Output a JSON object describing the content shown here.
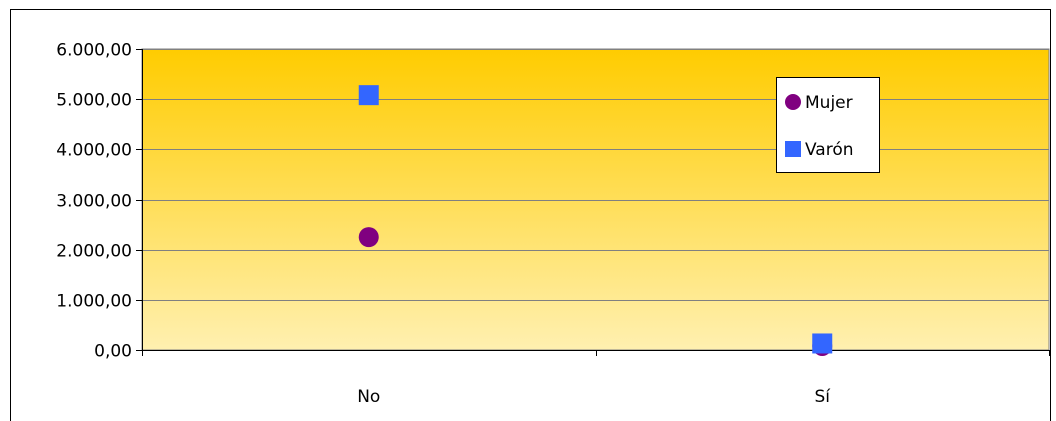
{
  "chart_data": {
    "type": "scatter",
    "categories": [
      "No",
      "Sí"
    ],
    "series": [
      {
        "name": "Mujer",
        "marker": "circle",
        "color": "#800080",
        "values": [
          2250,
          80
        ]
      },
      {
        "name": "Varón",
        "marker": "square",
        "color": "#3366FF",
        "values": [
          5080,
          130
        ]
      }
    ],
    "ylim": [
      0,
      6000
    ],
    "yticks": [
      0,
      1000,
      2000,
      3000,
      4000,
      5000,
      6000
    ],
    "ytick_labels": [
      "0,00",
      "1.000,00",
      "2.000,00",
      "3.000,00",
      "4.000,00",
      "5.000,00",
      "6.000,00"
    ],
    "grid": true,
    "legend_position": "right",
    "plot_gradient": [
      "#FFCC00",
      "#FFF0B0"
    ]
  }
}
